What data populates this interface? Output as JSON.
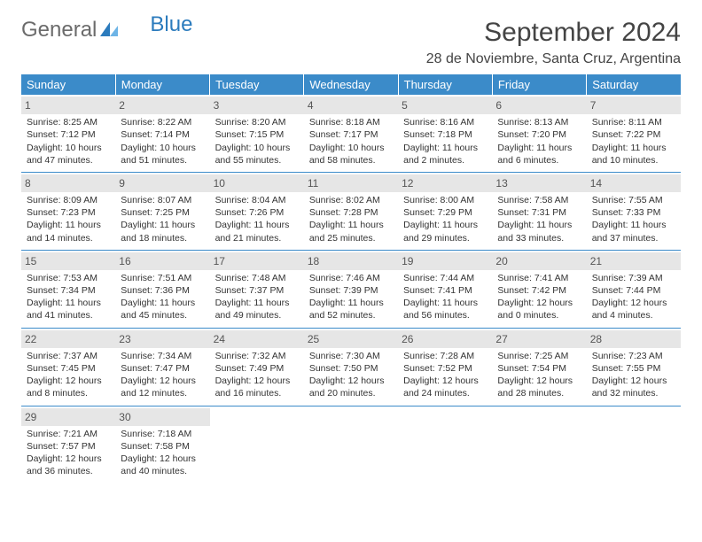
{
  "logo": {
    "part1": "General",
    "part2": "Blue"
  },
  "title": "September 2024",
  "location": "28 de Noviembre, Santa Cruz, Argentina",
  "header_bg": "#3b8bc9",
  "daynum_bg": "#e6e6e6",
  "dayNames": [
    "Sunday",
    "Monday",
    "Tuesday",
    "Wednesday",
    "Thursday",
    "Friday",
    "Saturday"
  ],
  "weeks": [
    [
      {
        "n": "1",
        "sr": "8:25 AM",
        "ss": "7:12 PM",
        "dl": "10 hours and 47 minutes."
      },
      {
        "n": "2",
        "sr": "8:22 AM",
        "ss": "7:14 PM",
        "dl": "10 hours and 51 minutes."
      },
      {
        "n": "3",
        "sr": "8:20 AM",
        "ss": "7:15 PM",
        "dl": "10 hours and 55 minutes."
      },
      {
        "n": "4",
        "sr": "8:18 AM",
        "ss": "7:17 PM",
        "dl": "10 hours and 58 minutes."
      },
      {
        "n": "5",
        "sr": "8:16 AM",
        "ss": "7:18 PM",
        "dl": "11 hours and 2 minutes."
      },
      {
        "n": "6",
        "sr": "8:13 AM",
        "ss": "7:20 PM",
        "dl": "11 hours and 6 minutes."
      },
      {
        "n": "7",
        "sr": "8:11 AM",
        "ss": "7:22 PM",
        "dl": "11 hours and 10 minutes."
      }
    ],
    [
      {
        "n": "8",
        "sr": "8:09 AM",
        "ss": "7:23 PM",
        "dl": "11 hours and 14 minutes."
      },
      {
        "n": "9",
        "sr": "8:07 AM",
        "ss": "7:25 PM",
        "dl": "11 hours and 18 minutes."
      },
      {
        "n": "10",
        "sr": "8:04 AM",
        "ss": "7:26 PM",
        "dl": "11 hours and 21 minutes."
      },
      {
        "n": "11",
        "sr": "8:02 AM",
        "ss": "7:28 PM",
        "dl": "11 hours and 25 minutes."
      },
      {
        "n": "12",
        "sr": "8:00 AM",
        "ss": "7:29 PM",
        "dl": "11 hours and 29 minutes."
      },
      {
        "n": "13",
        "sr": "7:58 AM",
        "ss": "7:31 PM",
        "dl": "11 hours and 33 minutes."
      },
      {
        "n": "14",
        "sr": "7:55 AM",
        "ss": "7:33 PM",
        "dl": "11 hours and 37 minutes."
      }
    ],
    [
      {
        "n": "15",
        "sr": "7:53 AM",
        "ss": "7:34 PM",
        "dl": "11 hours and 41 minutes."
      },
      {
        "n": "16",
        "sr": "7:51 AM",
        "ss": "7:36 PM",
        "dl": "11 hours and 45 minutes."
      },
      {
        "n": "17",
        "sr": "7:48 AM",
        "ss": "7:37 PM",
        "dl": "11 hours and 49 minutes."
      },
      {
        "n": "18",
        "sr": "7:46 AM",
        "ss": "7:39 PM",
        "dl": "11 hours and 52 minutes."
      },
      {
        "n": "19",
        "sr": "7:44 AM",
        "ss": "7:41 PM",
        "dl": "11 hours and 56 minutes."
      },
      {
        "n": "20",
        "sr": "7:41 AM",
        "ss": "7:42 PM",
        "dl": "12 hours and 0 minutes."
      },
      {
        "n": "21",
        "sr": "7:39 AM",
        "ss": "7:44 PM",
        "dl": "12 hours and 4 minutes."
      }
    ],
    [
      {
        "n": "22",
        "sr": "7:37 AM",
        "ss": "7:45 PM",
        "dl": "12 hours and 8 minutes."
      },
      {
        "n": "23",
        "sr": "7:34 AM",
        "ss": "7:47 PM",
        "dl": "12 hours and 12 minutes."
      },
      {
        "n": "24",
        "sr": "7:32 AM",
        "ss": "7:49 PM",
        "dl": "12 hours and 16 minutes."
      },
      {
        "n": "25",
        "sr": "7:30 AM",
        "ss": "7:50 PM",
        "dl": "12 hours and 20 minutes."
      },
      {
        "n": "26",
        "sr": "7:28 AM",
        "ss": "7:52 PM",
        "dl": "12 hours and 24 minutes."
      },
      {
        "n": "27",
        "sr": "7:25 AM",
        "ss": "7:54 PM",
        "dl": "12 hours and 28 minutes."
      },
      {
        "n": "28",
        "sr": "7:23 AM",
        "ss": "7:55 PM",
        "dl": "12 hours and 32 minutes."
      }
    ],
    [
      {
        "n": "29",
        "sr": "7:21 AM",
        "ss": "7:57 PM",
        "dl": "12 hours and 36 minutes."
      },
      {
        "n": "30",
        "sr": "7:18 AM",
        "ss": "7:58 PM",
        "dl": "12 hours and 40 minutes."
      },
      null,
      null,
      null,
      null,
      null
    ]
  ],
  "labels": {
    "sunrise": "Sunrise: ",
    "sunset": "Sunset: ",
    "daylight": "Daylight: "
  }
}
